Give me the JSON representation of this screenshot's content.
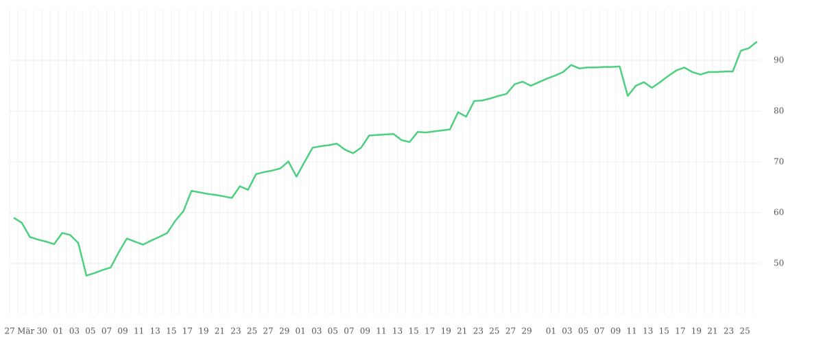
{
  "chart_data": {
    "type": "line",
    "categories": [
      "27",
      null,
      "Mär",
      null,
      "30",
      null,
      "01",
      null,
      "03",
      null,
      "05",
      null,
      "07",
      null,
      "09",
      null,
      "11",
      null,
      "13",
      null,
      "15",
      null,
      "17",
      null,
      "19",
      null,
      "21",
      null,
      "23",
      null,
      "25",
      null,
      "27",
      null,
      "29",
      null,
      "01",
      null,
      "03",
      null,
      "05",
      null,
      "07",
      null,
      "09",
      null,
      "11",
      null,
      "13",
      null,
      "15",
      null,
      "17",
      null,
      "19",
      null,
      "21",
      null,
      "23",
      null,
      "25",
      null,
      "27",
      null,
      "29",
      null,
      null,
      "01",
      null,
      "03",
      null,
      "05",
      null,
      "07",
      null,
      "09",
      null,
      "11",
      null,
      "13",
      null,
      "15",
      null,
      "17",
      null,
      "19",
      null,
      "21",
      null,
      "23",
      null,
      "25",
      null
    ],
    "series": [
      {
        "color": "#4cd07d",
        "values": [
          59.0,
          58.0,
          55.2,
          54.7,
          54.3,
          53.8,
          56.0,
          55.6,
          54.0,
          47.6,
          48.1,
          48.7,
          49.2,
          52.2,
          54.9,
          54.3,
          53.7,
          54.5,
          55.2,
          56.0,
          58.4,
          60.3,
          64.3,
          64.0,
          63.7,
          63.5,
          63.2,
          62.9,
          65.2,
          64.5,
          67.6,
          68.0,
          68.3,
          68.7,
          70.1,
          67.1,
          70.0,
          72.8,
          73.1,
          73.3,
          73.6,
          72.4,
          71.7,
          72.8,
          75.2,
          75.3,
          75.4,
          75.5,
          74.3,
          73.9,
          75.9,
          75.8,
          76.0,
          76.2,
          76.4,
          79.8,
          78.9,
          82.0,
          82.1,
          82.5,
          83.0,
          83.4,
          85.3,
          85.8,
          85.0,
          85.7,
          86.4,
          87.0,
          87.7,
          89.1,
          88.4,
          88.6,
          88.6,
          88.7,
          88.7,
          88.8,
          83.0,
          85.0,
          85.7,
          84.6,
          85.7,
          86.9,
          88.0,
          88.6,
          87.7,
          87.2,
          87.7,
          87.7,
          87.8,
          87.8,
          91.9,
          92.4,
          93.7
        ]
      }
    ],
    "ylim": [
      40,
      100
    ],
    "yticks": [
      50,
      60,
      70,
      80,
      90
    ],
    "grid": true
  }
}
